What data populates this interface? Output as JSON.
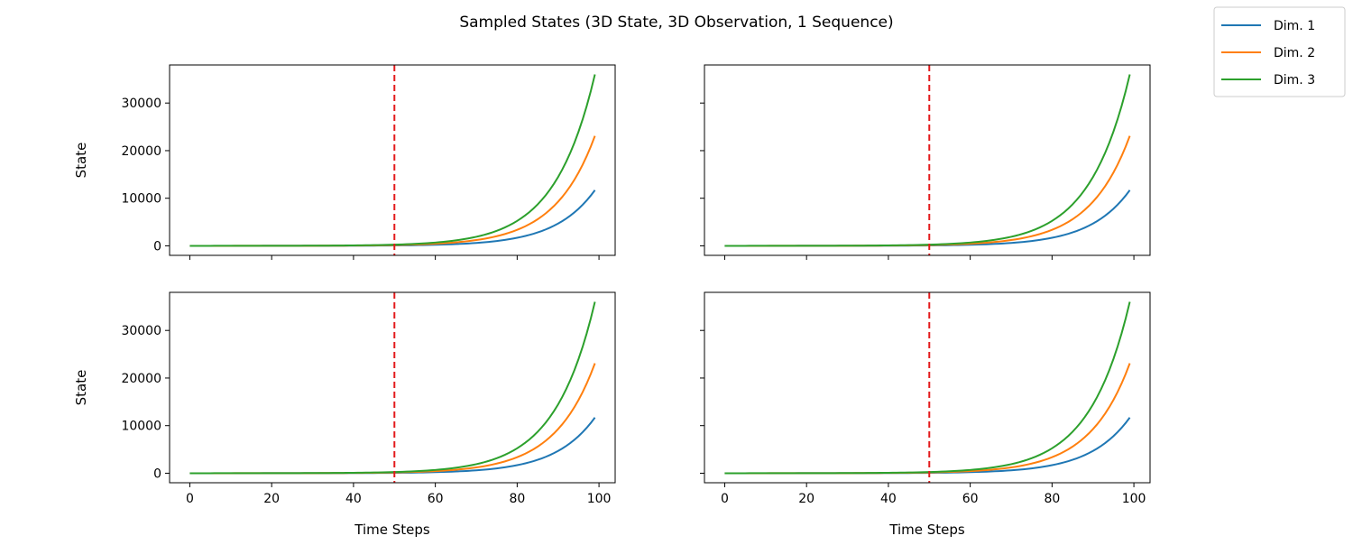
{
  "chart_data": {
    "type": "line",
    "title": "Sampled States (3D State, 3D Observation, 1 Sequence)",
    "legend": {
      "placement": "top-right (outside)",
      "entries": [
        "Dim. 1",
        "Dim. 2",
        "Dim. 3"
      ]
    },
    "colors": {
      "Dim. 1": "#1f77b4",
      "Dim. 2": "#ff7f0e",
      "Dim. 3": "#2ca02c",
      "marker": "#e31a1c"
    },
    "shared": {
      "xlim": [
        -4.95,
        103.95
      ],
      "ylim": [
        -2000,
        38000
      ],
      "xticks": [
        0,
        20,
        40,
        60,
        80,
        100
      ],
      "yticks": [
        0,
        10000,
        20000,
        30000
      ],
      "vline_x": 50,
      "vline_style": "dashed",
      "grid": false
    },
    "series": [
      {
        "name": "Dim. 1",
        "final_x": 99,
        "final_y": 11700
      },
      {
        "name": "Dim. 2",
        "final_x": 99,
        "final_y": 23100
      },
      {
        "name": "Dim. 3",
        "final_x": 99,
        "final_y": 36000
      }
    ],
    "growth": {
      "x_start": 0,
      "x_end": 99,
      "y_at_x50": [
        80,
        160,
        250
      ]
    },
    "subplots": [
      {
        "row": 0,
        "col": 0,
        "ylabel": "State",
        "xlabel": ""
      },
      {
        "row": 0,
        "col": 1,
        "ylabel": "",
        "xlabel": ""
      },
      {
        "row": 1,
        "col": 0,
        "ylabel": "State",
        "xlabel": "Time Steps"
      },
      {
        "row": 1,
        "col": 1,
        "ylabel": "",
        "xlabel": "Time Steps"
      }
    ]
  }
}
